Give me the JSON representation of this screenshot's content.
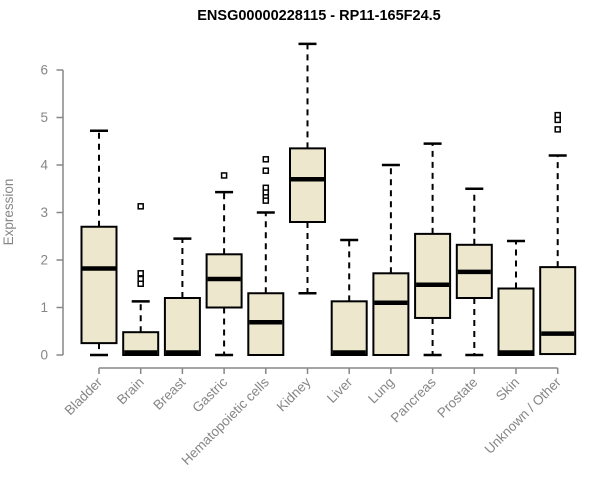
{
  "chart_data": {
    "type": "boxplot",
    "title": "ENSG00000228115 - RP11-165F24.5",
    "ylabel": "Expression",
    "xlabel": "",
    "ylim": [
      0,
      6
    ],
    "yticks": [
      0,
      1,
      2,
      3,
      4,
      5,
      6
    ],
    "grid": false,
    "legend": false,
    "colors": {
      "box_fill": "#EDE8CD",
      "box_border": "#000000",
      "median": "#000000",
      "whisker": "#000000",
      "outlier": "#000000",
      "axis": "#878787",
      "label": "#868686",
      "title": "#000000",
      "background": "#FFFFFF"
    },
    "categories": [
      "Bladder",
      "Brain",
      "Breast",
      "Gastric",
      "Hematopoietic cells",
      "Kidney",
      "Liver",
      "Lung",
      "Pancreas",
      "Prostate",
      "Skin",
      "Unknown / Other"
    ],
    "boxes": [
      {
        "category": "Bladder",
        "whisker_low": 0.0,
        "q1": 0.25,
        "median": 1.82,
        "q3": 2.7,
        "whisker_high": 4.72,
        "outliers": []
      },
      {
        "category": "Brain",
        "whisker_low": 0.0,
        "q1": 0.0,
        "median": 0.02,
        "q3": 0.48,
        "whisker_high": 1.13,
        "outliers": [
          3.13,
          1.72,
          1.6,
          1.5
        ]
      },
      {
        "category": "Breast",
        "whisker_low": 0.0,
        "q1": 0.0,
        "median": 0.02,
        "q3": 1.2,
        "whisker_high": 2.45,
        "outliers": []
      },
      {
        "category": "Gastric",
        "whisker_low": 0.0,
        "q1": 1.0,
        "median": 1.6,
        "q3": 2.12,
        "whisker_high": 3.43,
        "outliers": [
          3.78
        ]
      },
      {
        "category": "Hematopoietic cells",
        "whisker_low": 0.0,
        "q1": 0.0,
        "median": 0.69,
        "q3": 1.3,
        "whisker_high": 3.0,
        "outliers": [
          4.12,
          3.88,
          3.52,
          3.42,
          3.32,
          3.25
        ]
      },
      {
        "category": "Kidney",
        "whisker_low": 1.3,
        "q1": 2.8,
        "median": 3.7,
        "q3": 4.35,
        "whisker_high": 6.55,
        "outliers": []
      },
      {
        "category": "Liver",
        "whisker_low": 0.0,
        "q1": 0.0,
        "median": 0.03,
        "q3": 1.13,
        "whisker_high": 2.42,
        "outliers": []
      },
      {
        "category": "Lung",
        "whisker_low": 0.0,
        "q1": 0.0,
        "median": 1.1,
        "q3": 1.72,
        "whisker_high": 4.0,
        "outliers": []
      },
      {
        "category": "Pancreas",
        "whisker_low": 0.0,
        "q1": 0.78,
        "median": 1.48,
        "q3": 2.55,
        "whisker_high": 4.45,
        "outliers": []
      },
      {
        "category": "Prostate",
        "whisker_low": 0.0,
        "q1": 1.2,
        "median": 1.75,
        "q3": 2.32,
        "whisker_high": 3.5,
        "outliers": []
      },
      {
        "category": "Skin",
        "whisker_low": 0.0,
        "q1": 0.0,
        "median": 0.03,
        "q3": 1.4,
        "whisker_high": 2.4,
        "outliers": []
      },
      {
        "category": "Unknown / Other",
        "whisker_low": 0.0,
        "q1": 0.02,
        "median": 0.45,
        "q3": 1.85,
        "whisker_high": 4.2,
        "outliers": [
          5.05,
          4.95,
          4.75
        ]
      }
    ]
  }
}
